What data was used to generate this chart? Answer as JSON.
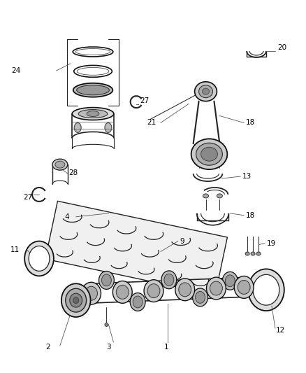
{
  "background_color": "#ffffff",
  "fig_width": 4.38,
  "fig_height": 5.33,
  "dpi": 100,
  "line_color": "#222222",
  "gray_fill": "#cccccc",
  "light_gray": "#e8e8e8",
  "dark_gray": "#888888",
  "leader_color": "#555555"
}
